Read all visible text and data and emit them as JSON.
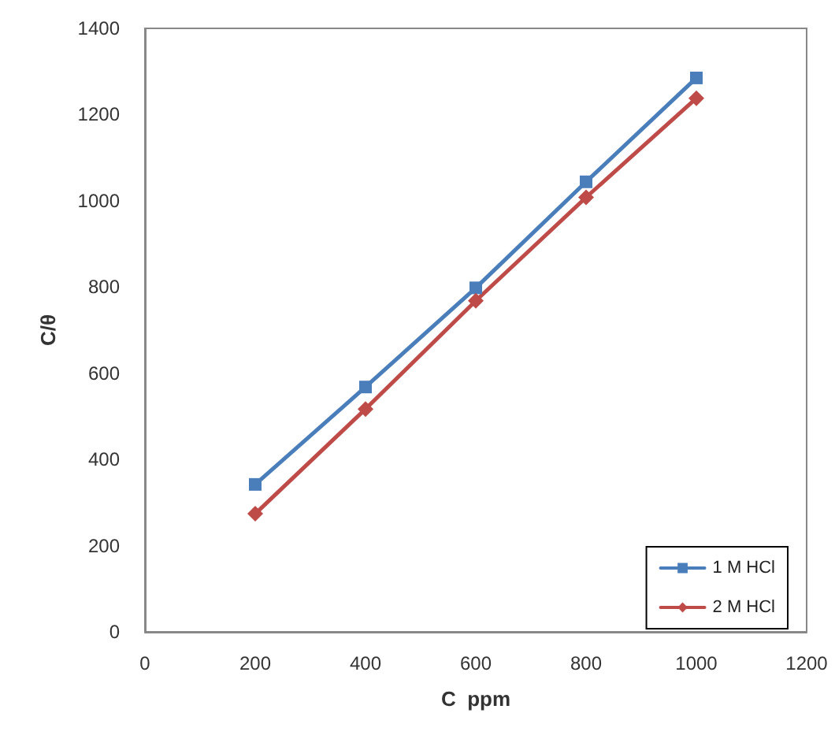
{
  "chart_data": {
    "type": "line",
    "xlabel": "C  ppm",
    "ylabel": "C/θ",
    "x": [
      200,
      400,
      600,
      800,
      1000
    ],
    "series": [
      {
        "name": "1 M HCl",
        "color": "#4a7ebb",
        "marker": "square",
        "values": [
          342,
          568,
          798,
          1044,
          1285
        ]
      },
      {
        "name": "2 M HCl",
        "color": "#be4b48",
        "marker": "diamond",
        "values": [
          274,
          517,
          768,
          1008,
          1238
        ]
      }
    ],
    "xlim": [
      0,
      1200
    ],
    "xticks": [
      0,
      200,
      400,
      600,
      800,
      1000,
      1200
    ],
    "ylim": [
      0,
      1400
    ],
    "yticks": [
      0,
      200,
      400,
      600,
      800,
      1000,
      1200,
      1400
    ],
    "grid": false,
    "legend": "bottom right",
    "line_style": "solid"
  }
}
